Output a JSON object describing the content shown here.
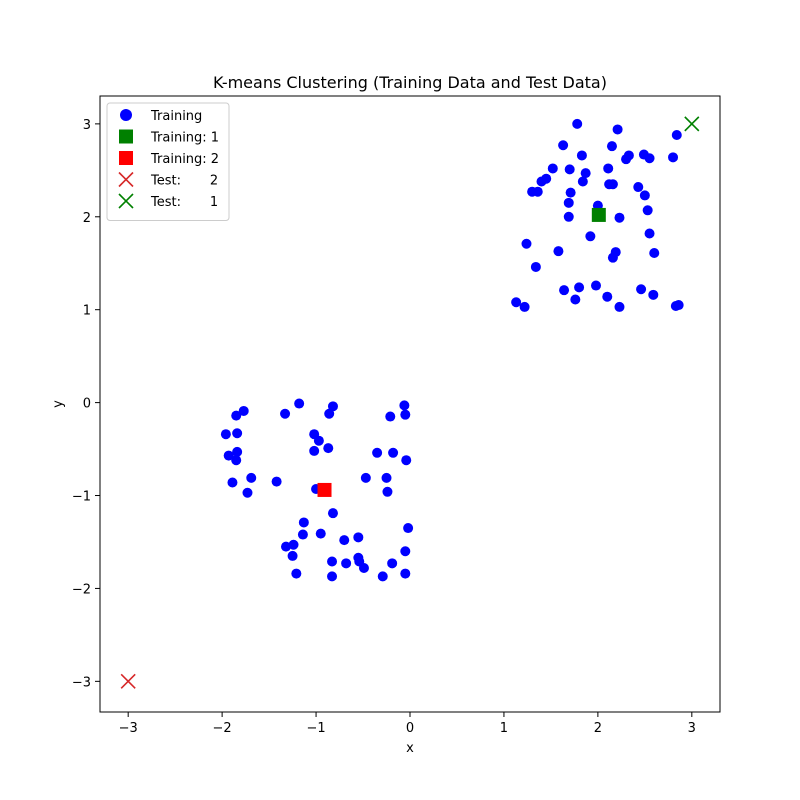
{
  "chart_data": {
    "type": "scatter",
    "title": "K-means Clustering (Training Data and Test Data)",
    "xlabel": "x",
    "ylabel": "y",
    "xlim": [
      -3.3,
      3.3
    ],
    "ylim": [
      -3.33,
      3.3
    ],
    "xticks": [
      -3,
      -2,
      -1,
      0,
      1,
      2,
      3
    ],
    "yticks": [
      -3,
      -2,
      -1,
      0,
      1,
      2,
      3
    ],
    "grid": false,
    "legend_position": "top-left",
    "series": [
      {
        "name": "Training",
        "marker": "circle",
        "color": "#0000ff",
        "points": [
          [
            1.78,
            3.0
          ],
          [
            2.21,
            2.94
          ],
          [
            1.63,
            2.77
          ],
          [
            2.15,
            2.76
          ],
          [
            1.83,
            2.66
          ],
          [
            2.33,
            2.66
          ],
          [
            2.49,
            2.67
          ],
          [
            2.3,
            2.62
          ],
          [
            2.55,
            2.63
          ],
          [
            2.8,
            2.64
          ],
          [
            2.84,
            2.88
          ],
          [
            1.52,
            2.52
          ],
          [
            1.7,
            2.51
          ],
          [
            2.11,
            2.52
          ],
          [
            1.87,
            2.47
          ],
          [
            1.45,
            2.41
          ],
          [
            1.4,
            2.38
          ],
          [
            1.84,
            2.38
          ],
          [
            2.12,
            2.35
          ],
          [
            2.16,
            2.35
          ],
          [
            2.43,
            2.32
          ],
          [
            1.3,
            2.27
          ],
          [
            1.36,
            2.27
          ],
          [
            1.71,
            2.26
          ],
          [
            2.5,
            2.23
          ],
          [
            1.69,
            2.15
          ],
          [
            2.0,
            2.12
          ],
          [
            2.53,
            2.07
          ],
          [
            1.69,
            2.0
          ],
          [
            2.23,
            1.99
          ],
          [
            2.55,
            1.82
          ],
          [
            1.92,
            1.79
          ],
          [
            1.24,
            1.71
          ],
          [
            1.58,
            1.63
          ],
          [
            2.19,
            1.62
          ],
          [
            2.6,
            1.61
          ],
          [
            2.16,
            1.56
          ],
          [
            1.34,
            1.46
          ],
          [
            1.8,
            1.24
          ],
          [
            1.98,
            1.26
          ],
          [
            1.64,
            1.21
          ],
          [
            2.46,
            1.22
          ],
          [
            2.1,
            1.14
          ],
          [
            2.59,
            1.16
          ],
          [
            1.76,
            1.11
          ],
          [
            1.13,
            1.08
          ],
          [
            1.22,
            1.03
          ],
          [
            2.23,
            1.03
          ],
          [
            2.83,
            1.04
          ],
          [
            2.86,
            1.05
          ],
          [
            -1.18,
            -0.01
          ],
          [
            -0.82,
            -0.04
          ],
          [
            -0.06,
            -0.03
          ],
          [
            -1.77,
            -0.09
          ],
          [
            -0.86,
            -0.12
          ],
          [
            -1.33,
            -0.12
          ],
          [
            -1.85,
            -0.14
          ],
          [
            -0.21,
            -0.15
          ],
          [
            -0.05,
            -0.13
          ],
          [
            -1.96,
            -0.34
          ],
          [
            -1.84,
            -0.33
          ],
          [
            -1.02,
            -0.34
          ],
          [
            -0.97,
            -0.41
          ],
          [
            -0.87,
            -0.49
          ],
          [
            -1.84,
            -0.53
          ],
          [
            -1.02,
            -0.52
          ],
          [
            -0.35,
            -0.54
          ],
          [
            -0.18,
            -0.54
          ],
          [
            -1.93,
            -0.57
          ],
          [
            -1.85,
            -0.62
          ],
          [
            -0.04,
            -0.62
          ],
          [
            -1.69,
            -0.81
          ],
          [
            -0.47,
            -0.81
          ],
          [
            -0.25,
            -0.81
          ],
          [
            -1.89,
            -0.86
          ],
          [
            -1.42,
            -0.85
          ],
          [
            -1.0,
            -0.93
          ],
          [
            -1.73,
            -0.97
          ],
          [
            -0.24,
            -0.96
          ],
          [
            -0.82,
            -1.19
          ],
          [
            -1.13,
            -1.29
          ],
          [
            -0.02,
            -1.35
          ],
          [
            -1.14,
            -1.42
          ],
          [
            -0.95,
            -1.41
          ],
          [
            -0.55,
            -1.45
          ],
          [
            -0.7,
            -1.48
          ],
          [
            -1.24,
            -1.53
          ],
          [
            -1.32,
            -1.55
          ],
          [
            -0.05,
            -1.6
          ],
          [
            -1.25,
            -1.65
          ],
          [
            -0.55,
            -1.67
          ],
          [
            -0.54,
            -1.71
          ],
          [
            -0.83,
            -1.71
          ],
          [
            -0.68,
            -1.73
          ],
          [
            -0.19,
            -1.73
          ],
          [
            -0.49,
            -1.78
          ],
          [
            -1.21,
            -1.84
          ],
          [
            -0.05,
            -1.84
          ],
          [
            -0.83,
            -1.87
          ],
          [
            -0.29,
            -1.87
          ]
        ]
      },
      {
        "name": "Training: 1",
        "marker": "square",
        "color": "#008000",
        "points": [
          [
            2.01,
            2.02
          ]
        ]
      },
      {
        "name": "Training: 2",
        "marker": "square",
        "color": "#ff0000",
        "points": [
          [
            -0.91,
            -0.94
          ]
        ]
      },
      {
        "name": "Test:       2",
        "marker": "x",
        "color": "#d62728",
        "points": [
          [
            -3.0,
            -3.0
          ]
        ]
      },
      {
        "name": "Test:       1",
        "marker": "x",
        "color": "#008000",
        "points": [
          [
            3.0,
            3.0
          ]
        ]
      }
    ]
  }
}
